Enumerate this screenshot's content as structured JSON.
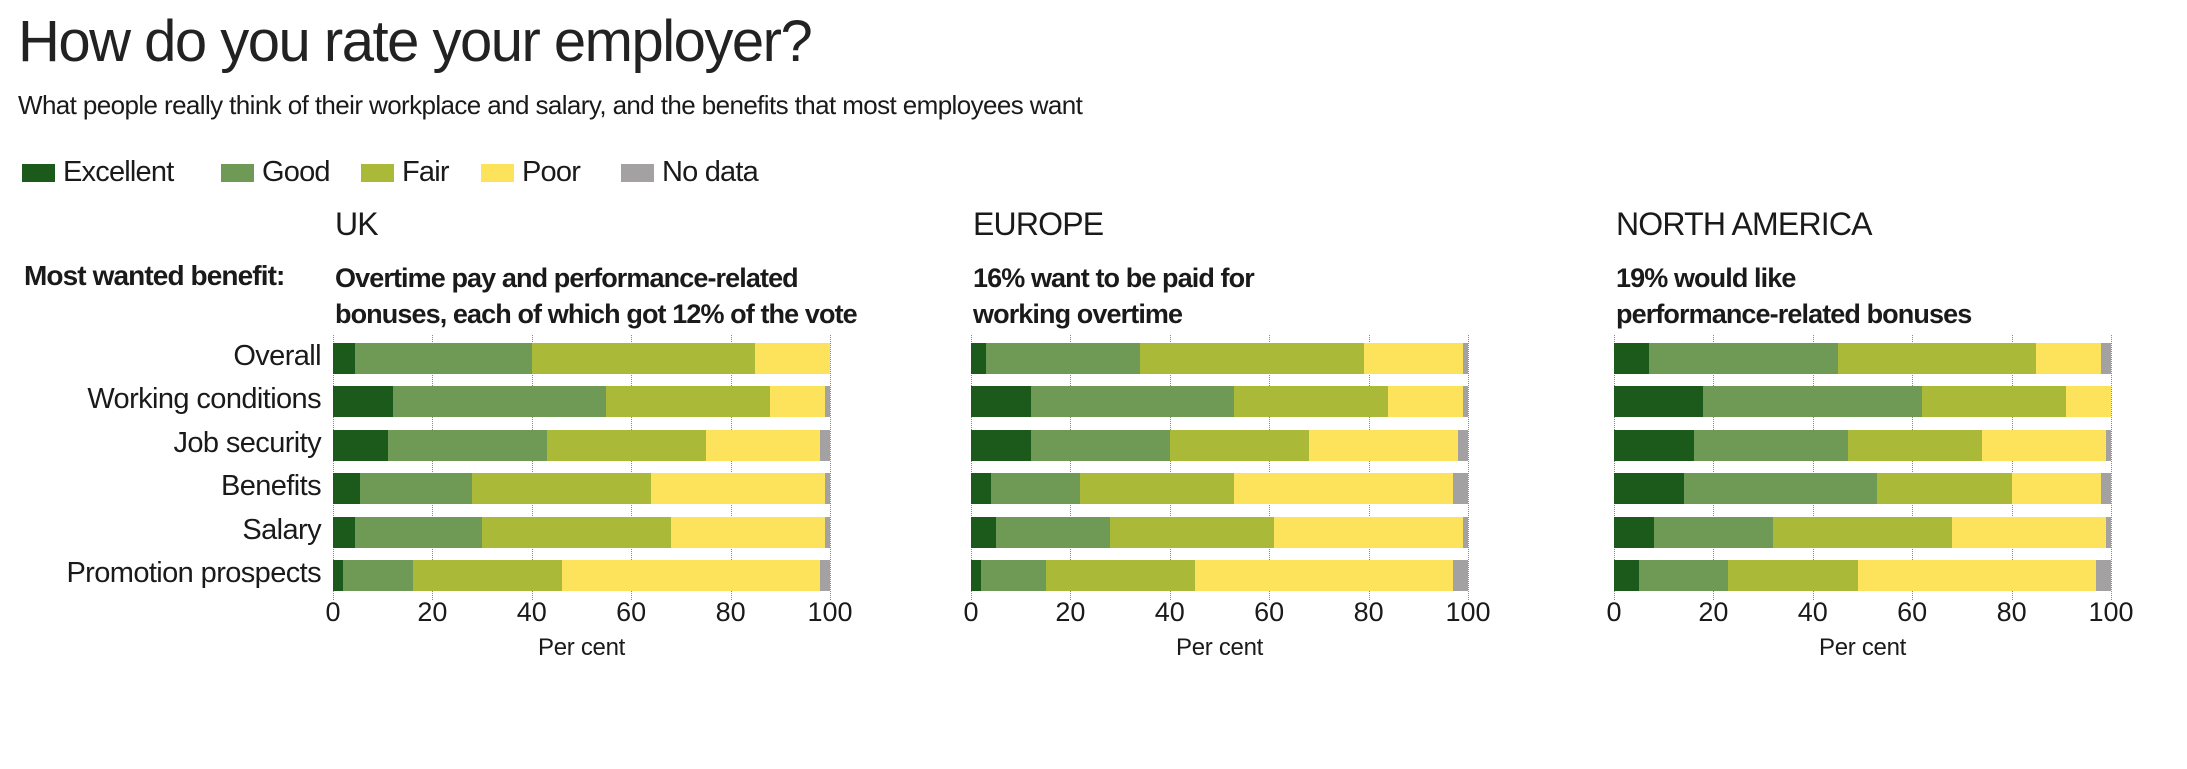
{
  "title": "How do you rate your employer?",
  "subtitle": "What people really think of their workplace and salary, and the benefits that most employees want",
  "most_wanted_label": "Most wanted benefit:",
  "colors": {
    "Excellent": "#1b5a1b",
    "Good": "#6f9a55",
    "Fair": "#abb938",
    "Poor": "#fde35b",
    "No data": "#a3a1a1"
  },
  "chart_data": {
    "type": "bar",
    "orientation": "horizontal-stacked",
    "legend": [
      "Excellent",
      "Good",
      "Fair",
      "Poor",
      "No data"
    ],
    "legend_placement": "top-left",
    "categories": [
      "Overall",
      "Working conditions",
      "Job security",
      "Benefits",
      "Salary",
      "Promotion prospects"
    ],
    "xlabel": "Per cent",
    "xlim": [
      0,
      100
    ],
    "xticks": [
      "0",
      "20",
      "40",
      "60",
      "80",
      "100"
    ],
    "grid": true,
    "panels": [
      {
        "region": "UK",
        "benefit": [
          "Overtime pay and performance-related",
          "bonuses, each of which got 12% of the vote"
        ],
        "series": [
          {
            "name": "Excellent",
            "values": [
              4.5,
              12,
              11,
              5.5,
              4.5,
              2
            ]
          },
          {
            "name": "Good",
            "values": [
              35.5,
              43,
              32,
              22.5,
              25.5,
              14
            ]
          },
          {
            "name": "Fair",
            "values": [
              45,
              33,
              32,
              36,
              38,
              30
            ]
          },
          {
            "name": "Poor",
            "values": [
              15,
              11,
              23,
              35,
              31,
              52
            ]
          },
          {
            "name": "No data",
            "values": [
              0,
              1,
              2,
              1,
              1,
              2
            ]
          }
        ]
      },
      {
        "region": "EUROPE",
        "benefit": [
          "16% want to be paid for",
          "working overtime"
        ],
        "series": [
          {
            "name": "Excellent",
            "values": [
              3,
              12,
              12,
              4,
              5,
              2
            ]
          },
          {
            "name": "Good",
            "values": [
              31,
              41,
              28,
              18,
              23,
              13
            ]
          },
          {
            "name": "Fair",
            "values": [
              45,
              31,
              28,
              31,
              33,
              30
            ]
          },
          {
            "name": "Poor",
            "values": [
              20,
              15,
              30,
              44,
              38,
              52
            ]
          },
          {
            "name": "No data",
            "values": [
              1,
              1,
              2,
              3,
              1,
              3
            ]
          }
        ]
      },
      {
        "region": "NORTH AMERICA",
        "benefit": [
          "19% would like",
          "performance-related bonuses"
        ],
        "series": [
          {
            "name": "Excellent",
            "values": [
              7,
              18,
              16,
              14,
              8,
              5
            ]
          },
          {
            "name": "Good",
            "values": [
              38,
              44,
              31,
              39,
              24,
              18
            ]
          },
          {
            "name": "Fair",
            "values": [
              40,
              29,
              27,
              27,
              36,
              26
            ]
          },
          {
            "name": "Poor",
            "values": [
              13,
              9,
              25,
              18,
              31,
              48
            ]
          },
          {
            "name": "No data",
            "values": [
              2,
              0,
              1,
              2,
              1,
              3
            ]
          }
        ]
      }
    ]
  }
}
